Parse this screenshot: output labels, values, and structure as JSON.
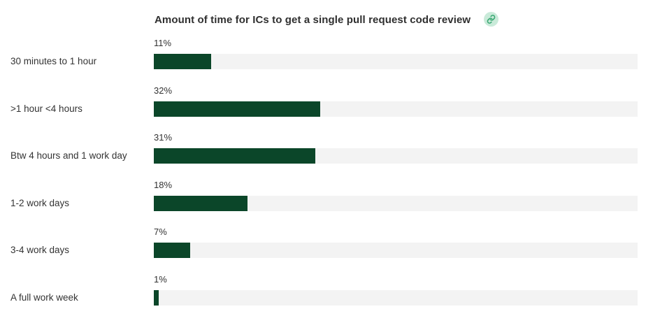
{
  "header": {
    "title": "Amount of time for ICs to get a single pull request code review",
    "link_icon": "link-icon"
  },
  "colors": {
    "bar": "#0b4629",
    "track": "#f3f3f3",
    "link_badge": "#c9ead9",
    "link_glyph": "#3aa873"
  },
  "chart_data": {
    "type": "bar",
    "orientation": "horizontal",
    "title": "Amount of time for ICs to get a single pull request code review",
    "categories": [
      "30 minutes to 1 hour",
      ">1 hour <4 hours",
      "Btw 4 hours and 1 work day",
      "1-2 work days",
      "3-4 work days",
      "A full work week"
    ],
    "values": [
      11,
      32,
      31,
      18,
      7,
      1
    ],
    "value_labels": [
      "11%",
      "32%",
      "31%",
      "18%",
      "7%",
      "1%"
    ],
    "xlim": [
      0,
      100
    ],
    "unit": "%",
    "grid": false,
    "legend": "none"
  }
}
